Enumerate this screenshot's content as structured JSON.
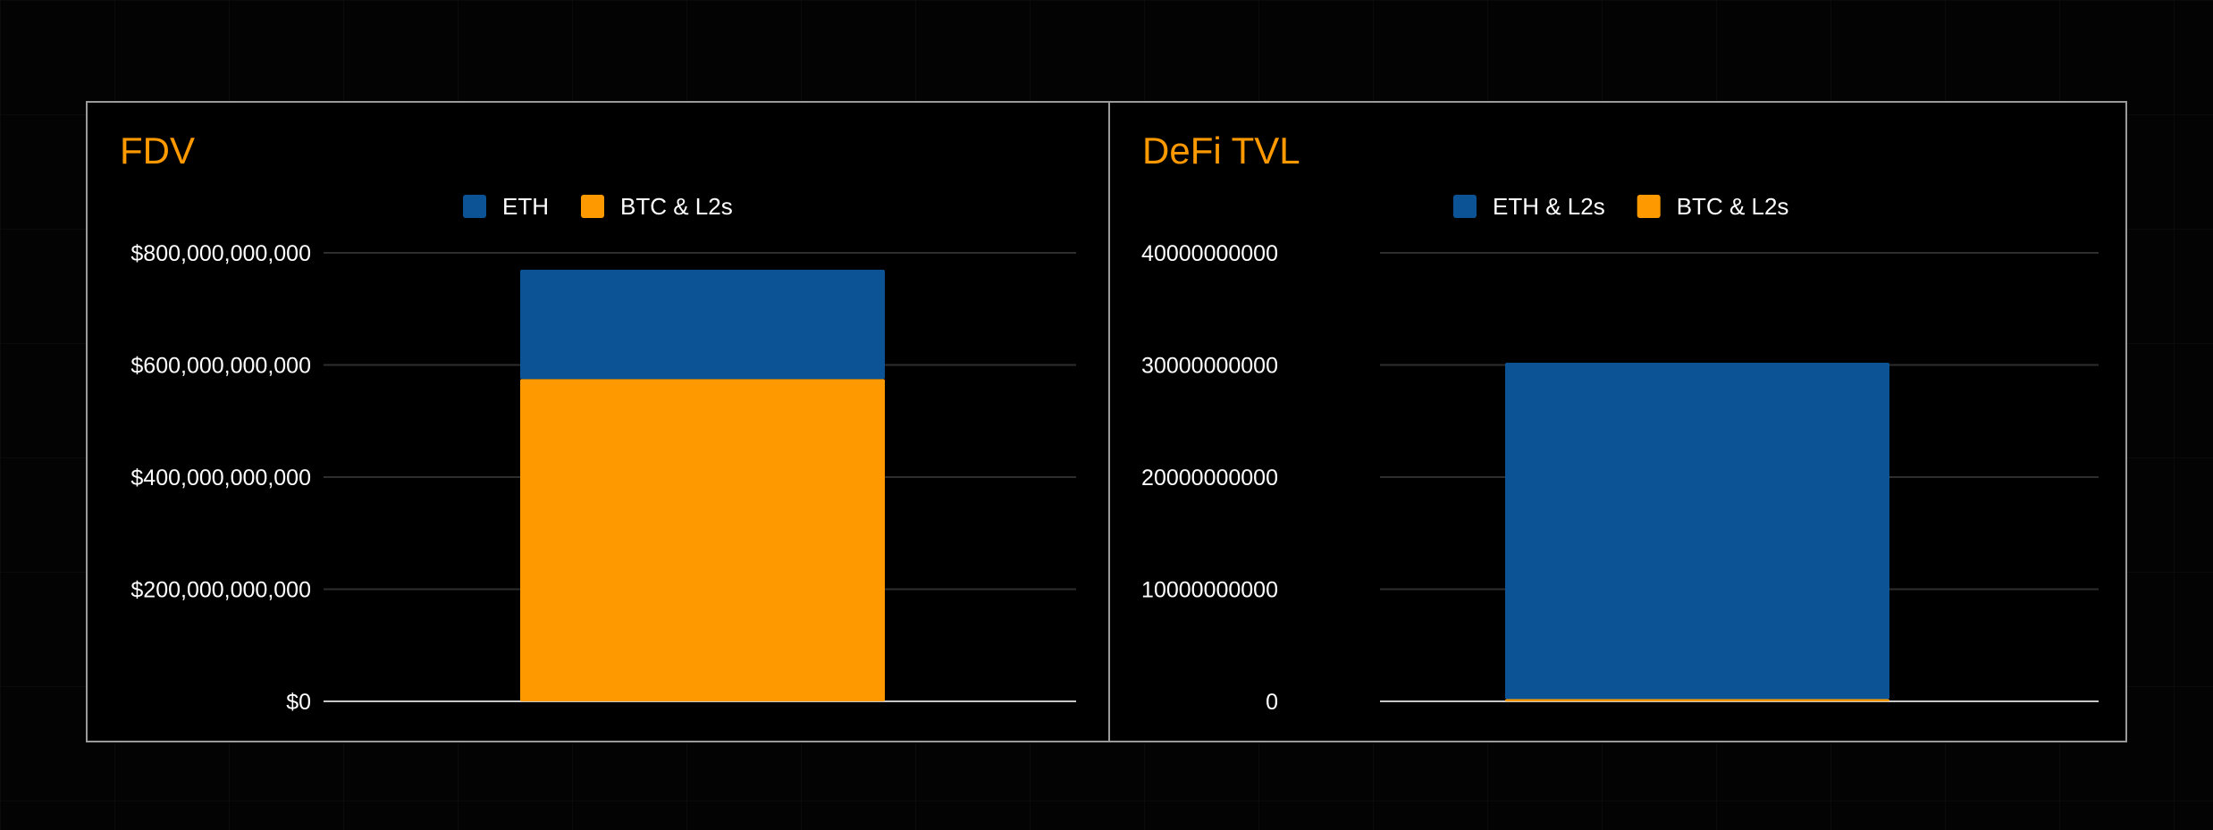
{
  "chart_data": [
    {
      "type": "bar",
      "stacked": true,
      "title": "FDV",
      "categories": [
        ""
      ],
      "series": [
        {
          "name": "ETH",
          "color": "#0b5394",
          "values": [
            195000000000
          ]
        },
        {
          "name": "BTC & L2s",
          "color": "#ff9900",
          "values": [
            575000000000
          ]
        }
      ],
      "ylim": [
        0,
        800000000000
      ],
      "yticks": [
        {
          "value": 0,
          "label": "$0"
        },
        {
          "value": 200000000000,
          "label": "$200,000,000,000"
        },
        {
          "value": 400000000000,
          "label": "$400,000,000,000"
        },
        {
          "value": 600000000000,
          "label": "$600,000,000,000"
        },
        {
          "value": 800000000000,
          "label": "$800,000,000,000"
        }
      ],
      "legend_position": "top-center",
      "grid": true
    },
    {
      "type": "bar",
      "stacked": true,
      "title": "DeFi TVL",
      "categories": [
        ""
      ],
      "series": [
        {
          "name": "ETH & L2s",
          "color": "#0b5394",
          "values": [
            30000000000
          ]
        },
        {
          "name": "BTC & L2s",
          "color": "#ff9900",
          "values": [
            200000000
          ]
        }
      ],
      "ylim": [
        0,
        40000000000
      ],
      "yticks": [
        {
          "value": 0,
          "label": "0"
        },
        {
          "value": 10000000000,
          "label": "10000000000"
        },
        {
          "value": 20000000000,
          "label": "20000000000"
        },
        {
          "value": 30000000000,
          "label": "30000000000"
        },
        {
          "value": 40000000000,
          "label": "40000000000"
        }
      ],
      "legend_position": "top-center",
      "grid": true
    }
  ],
  "colors": {
    "title": "#ff9900",
    "text": "#ffffff",
    "grid": "#2e2e2e",
    "axis": "#c8c8c8"
  }
}
